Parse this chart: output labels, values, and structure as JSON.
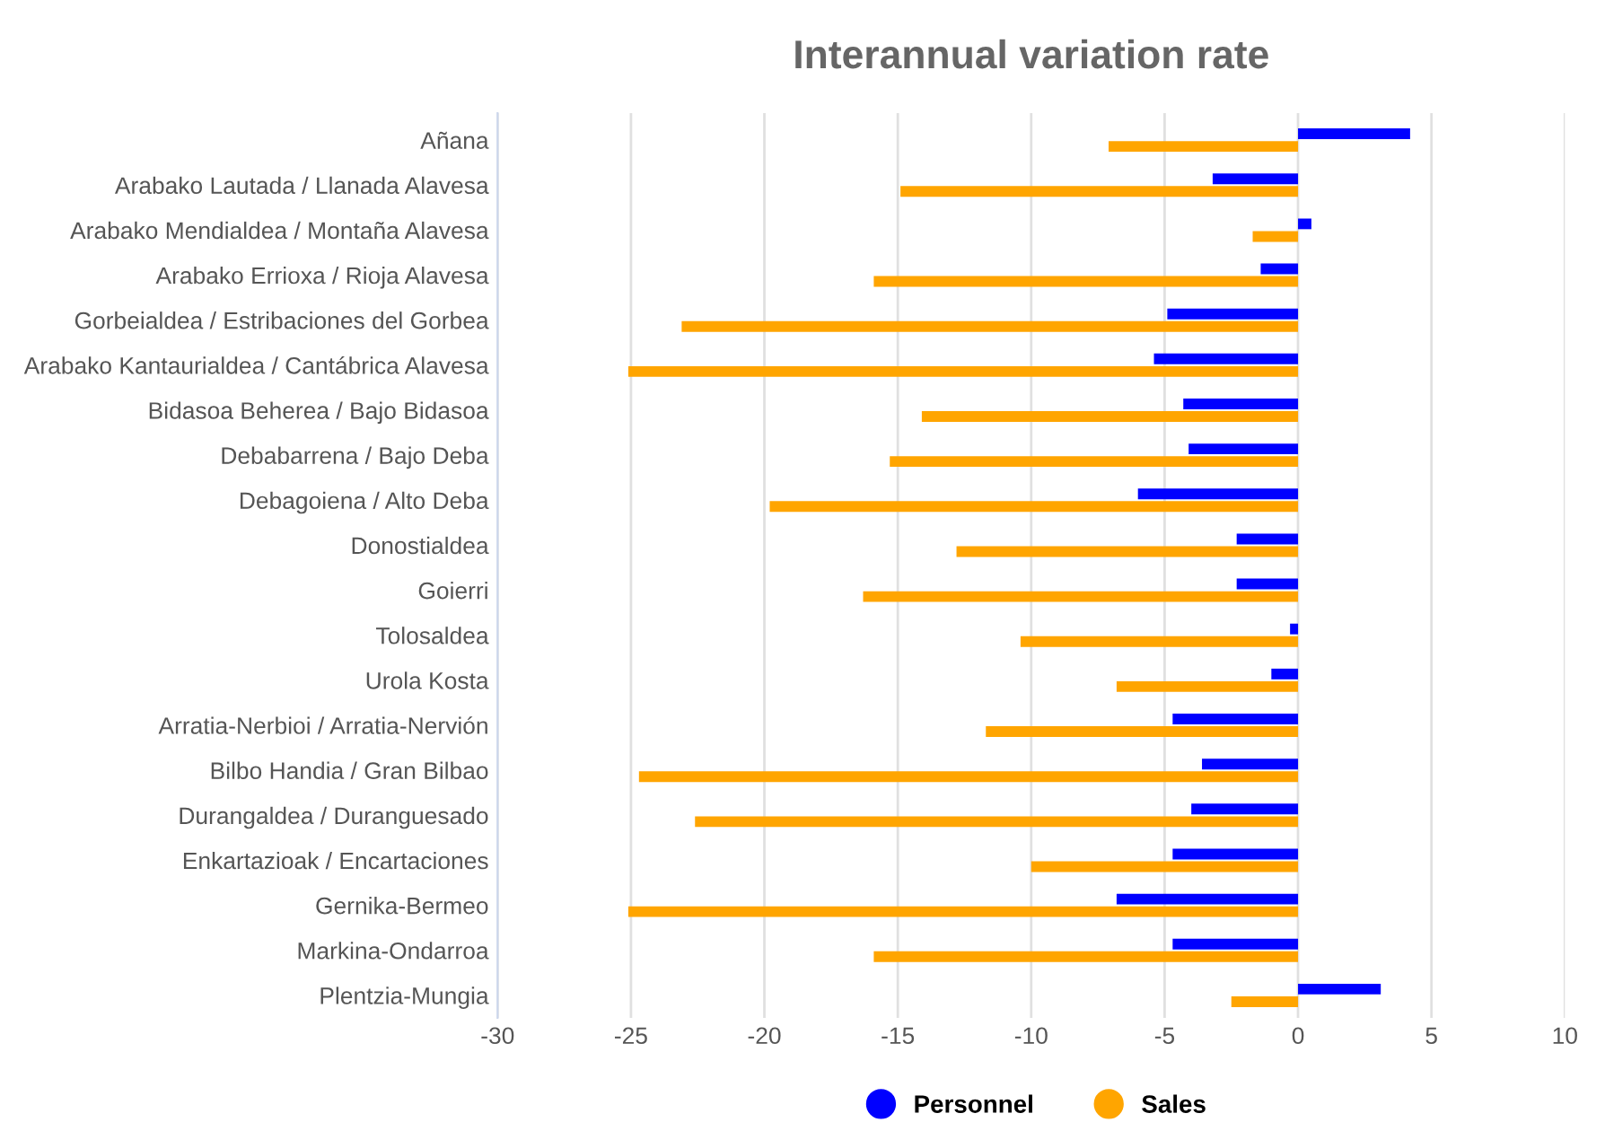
{
  "chart_data": {
    "type": "bar",
    "orientation": "horizontal",
    "title": "Interannual variation rate",
    "categories": [
      "Añana",
      "Arabako Lautada / Llanada Alavesa",
      "Arabako Mendialdea / Montaña Alavesa",
      "Arabako Errioxa / Rioja Alavesa",
      "Gorbeialdea / Estribaciones del Gorbea",
      "Arabako Kantaurialdea / Cantábrica Alavesa",
      "Bidasoa Beherea / Bajo Bidasoa",
      "Debabarrena / Bajo Deba",
      "Debagoiena / Alto Deba",
      "Donostialdea",
      "Goierri",
      "Tolosaldea",
      "Urola Kosta",
      "Arratia-Nerbioi / Arratia-Nervión",
      "Bilbo Handia / Gran Bilbao",
      "Durangaldea / Duranguesado",
      "Enkartazioak / Encartaciones",
      "Gernika-Bermeo",
      "Markina-Ondarroa",
      "Plentzia-Mungia"
    ],
    "series": [
      {
        "name": "Personnel",
        "color": "#0000ff",
        "values": [
          4.2,
          -3.2,
          0.5,
          -1.4,
          -4.9,
          -5.4,
          -4.3,
          -4.1,
          -6.0,
          -2.3,
          -2.3,
          -0.3,
          -1.0,
          -4.7,
          -3.6,
          -4.0,
          -4.7,
          -6.8,
          -4.7,
          3.1
        ]
      },
      {
        "name": "Sales",
        "color": "#ffa500",
        "values": [
          -7.1,
          -14.9,
          -1.7,
          -15.9,
          -23.1,
          -25.1,
          -14.1,
          -15.3,
          -19.8,
          -12.8,
          -16.3,
          -10.4,
          -6.8,
          -11.7,
          -24.7,
          -22.6,
          -10.0,
          -25.1,
          -15.9,
          -2.5
        ]
      }
    ],
    "xlim": [
      -30,
      10
    ],
    "xticks": [
      -30,
      -25,
      -20,
      -15,
      -10,
      -5,
      0,
      5,
      10
    ],
    "grid": "x",
    "legend": "bottom",
    "marker": "circle"
  }
}
